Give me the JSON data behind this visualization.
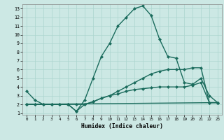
{
  "xlabel": "Humidex (Indice chaleur)",
  "xlim": [
    -0.5,
    23.5
  ],
  "ylim": [
    0.8,
    13.5
  ],
  "yticks": [
    1,
    2,
    3,
    4,
    5,
    6,
    7,
    8,
    9,
    10,
    11,
    12,
    13
  ],
  "xticks": [
    0,
    1,
    2,
    3,
    4,
    5,
    6,
    7,
    8,
    9,
    10,
    11,
    12,
    13,
    14,
    15,
    16,
    17,
    18,
    19,
    20,
    21,
    22,
    23
  ],
  "bg_color": "#cce8e4",
  "line_color": "#1a6b5c",
  "grid_color": "#aad4ce",
  "line_width": 1.0,
  "marker": "D",
  "marker_size": 2.0,
  "series": [
    {
      "x": [
        0,
        1,
        2,
        3,
        4,
        5,
        6,
        7,
        8,
        9,
        10,
        11,
        12,
        13,
        14,
        15,
        16,
        17,
        18,
        19,
        20,
        21,
        22,
        23
      ],
      "y": [
        3.5,
        2.5,
        2.0,
        2.0,
        2.0,
        2.0,
        1.2,
        2.5,
        5.0,
        7.5,
        9.0,
        11.0,
        12.0,
        13.0,
        13.3,
        12.2,
        9.5,
        7.5,
        7.3,
        4.5,
        4.3,
        5.0,
        3.0,
        2.2
      ]
    },
    {
      "x": [
        0,
        1,
        2,
        3,
        4,
        5,
        6,
        7,
        8,
        9,
        10,
        11,
        12,
        13,
        14,
        15,
        16,
        17,
        18,
        19,
        20,
        21,
        22,
        23
      ],
      "y": [
        2.0,
        2.0,
        2.0,
        2.0,
        2.0,
        2.0,
        2.0,
        2.0,
        2.3,
        2.7,
        3.0,
        3.5,
        4.0,
        4.5,
        5.0,
        5.5,
        5.8,
        6.0,
        6.0,
        6.0,
        6.2,
        6.2,
        2.2,
        2.2
      ]
    },
    {
      "x": [
        0,
        23
      ],
      "y": [
        2.0,
        2.2
      ]
    },
    {
      "x": [
        0,
        1,
        2,
        3,
        4,
        5,
        6,
        7,
        8,
        9,
        10,
        11,
        12,
        13,
        14,
        15,
        16,
        17,
        18,
        19,
        20,
        21,
        22,
        23
      ],
      "y": [
        2.0,
        2.0,
        2.0,
        2.0,
        2.0,
        2.0,
        1.2,
        2.0,
        2.3,
        2.7,
        3.0,
        3.2,
        3.5,
        3.7,
        3.8,
        3.9,
        4.0,
        4.0,
        4.0,
        4.0,
        4.2,
        4.5,
        2.2,
        2.2
      ]
    }
  ]
}
